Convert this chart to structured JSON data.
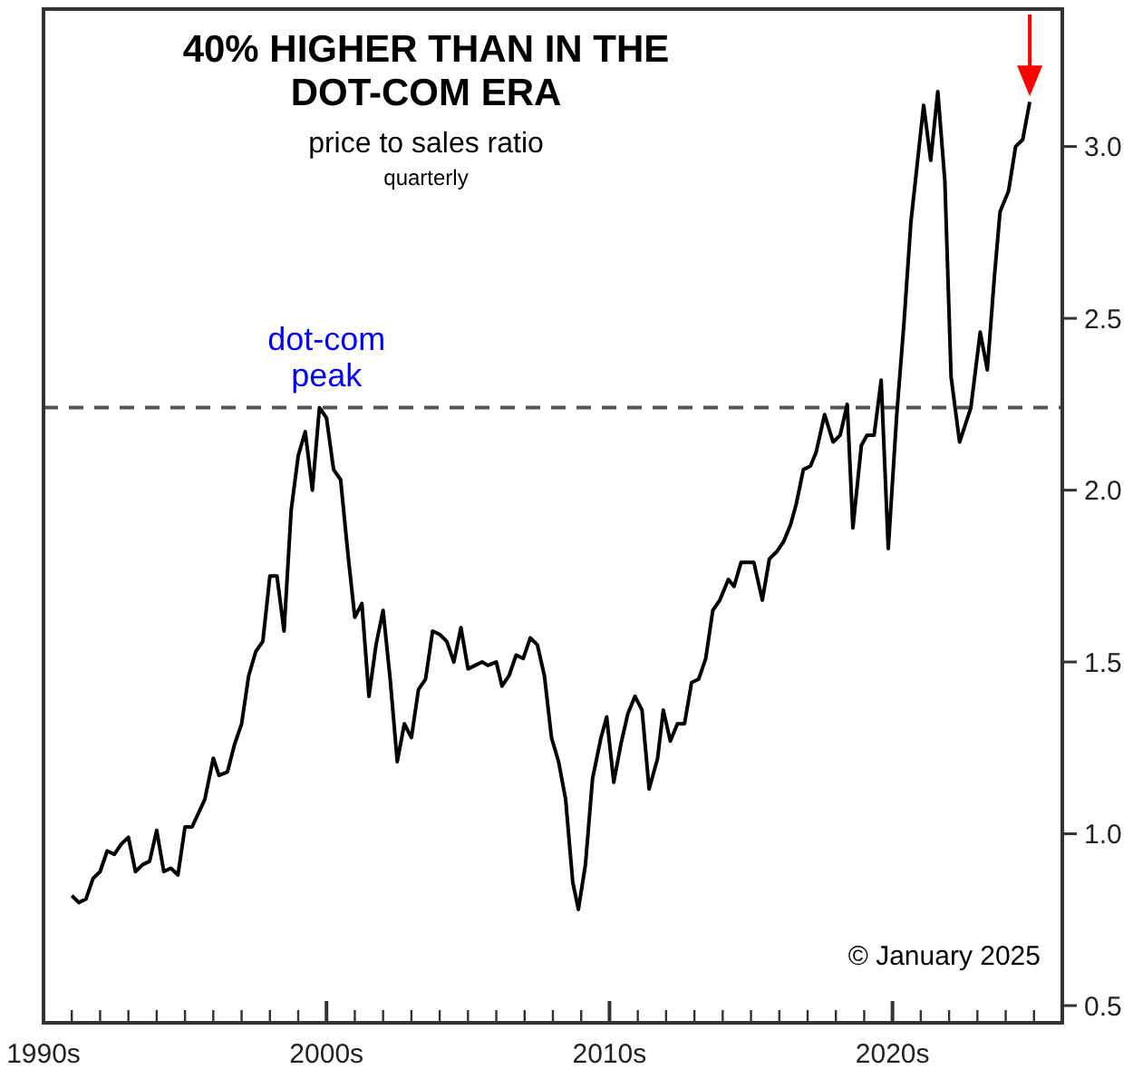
{
  "chart_data": {
    "type": "line",
    "title": "40% HIGHER THAN IN THE DOT-COM ERA",
    "subtitle": "price to sales ratio",
    "annotations": [
      "quarterly",
      "© January 2025"
    ],
    "series": [
      {
        "color": "#000000",
        "x": [
          1991,
          1991.25,
          1991.5,
          1991.75,
          1992,
          1992.25,
          1992.5,
          1992.75,
          1993,
          1993.25,
          1993.5,
          1993.75,
          1994,
          1994.25,
          1994.5,
          1994.75,
          1995,
          1995.25,
          1995.7,
          1996,
          1996.2,
          1996.5,
          1996.75,
          1997,
          1997.25,
          1997.5,
          1997.75,
          1998,
          1998.25,
          1998.5,
          1998.75,
          1999,
          1999.25,
          1999.5,
          1999.75,
          2000,
          2000.25,
          2000.5,
          2000.75,
          2001,
          2001.25,
          2001.5,
          2001.75,
          2002,
          2002.25,
          2002.5,
          2002.75,
          2003,
          2003.25,
          2003.5,
          2003.75,
          2004,
          2004.25,
          2004.5,
          2004.75,
          2005,
          2005.25,
          2005.5,
          2005.7,
          2006,
          2006.2,
          2006.45,
          2006.7,
          2006.95,
          2007.2,
          2007.45,
          2007.7,
          2007.95,
          2008.2,
          2008.45,
          2008.7,
          2008.9,
          2009.15,
          2009.4,
          2009.7,
          2009.9,
          2010.15,
          2010.4,
          2010.65,
          2010.9,
          2011.15,
          2011.4,
          2011.7,
          2011.9,
          2012.15,
          2012.4,
          2012.65,
          2012.9,
          2013.15,
          2013.4,
          2013.65,
          2013.9,
          2014.2,
          2014.4,
          2014.65,
          2015.1,
          2015.4,
          2015.65,
          2015.9,
          2016.15,
          2016.4,
          2016.6,
          2016.85,
          2017.1,
          2017.3,
          2017.6,
          2017.9,
          2018.15,
          2018.4,
          2018.6,
          2018.9,
          2019.1,
          2019.35,
          2019.6,
          2019.85,
          2020.15,
          2020.4,
          2020.65,
          2021.1,
          2021.35,
          2021.6,
          2021.85,
          2022.07,
          2022.37,
          2022.77,
          2023.1,
          2023.35,
          2023.6,
          2023.8,
          2024.1,
          2024.35,
          2024.6,
          2024.85
        ],
        "values": [
          0.82,
          0.8,
          0.81,
          0.87,
          0.89,
          0.95,
          0.94,
          0.97,
          0.99,
          0.89,
          0.91,
          0.92,
          1.01,
          0.89,
          0.9,
          0.88,
          1.02,
          1.02,
          1.1,
          1.22,
          1.17,
          1.18,
          1.26,
          1.32,
          1.46,
          1.53,
          1.56,
          1.75,
          1.75,
          1.59,
          1.94,
          2.1,
          2.17,
          2.0,
          2.24,
          2.21,
          2.06,
          2.03,
          1.82,
          1.63,
          1.67,
          1.4,
          1.55,
          1.65,
          1.45,
          1.21,
          1.32,
          1.28,
          1.42,
          1.45,
          1.59,
          1.58,
          1.56,
          1.5,
          1.6,
          1.48,
          1.49,
          1.5,
          1.49,
          1.5,
          1.43,
          1.46,
          1.52,
          1.51,
          1.57,
          1.55,
          1.46,
          1.28,
          1.21,
          1.1,
          0.86,
          0.78,
          0.91,
          1.16,
          1.28,
          1.34,
          1.15,
          1.26,
          1.35,
          1.4,
          1.36,
          1.13,
          1.22,
          1.36,
          1.27,
          1.32,
          1.32,
          1.44,
          1.45,
          1.51,
          1.65,
          1.68,
          1.74,
          1.72,
          1.79,
          1.79,
          1.68,
          1.8,
          1.82,
          1.85,
          1.9,
          1.96,
          2.06,
          2.07,
          2.11,
          2.22,
          2.14,
          2.16,
          2.25,
          1.89,
          2.13,
          2.16,
          2.16,
          2.32,
          1.83,
          2.22,
          2.48,
          2.78,
          3.12,
          2.96,
          3.16,
          2.9,
          2.33,
          2.14,
          2.24,
          2.46,
          2.35,
          2.62,
          2.81,
          2.87,
          3.0,
          3.02,
          3.13
        ]
      }
    ],
    "xlim": [
      1990,
      2026
    ],
    "xticks": [
      {
        "value": 1990,
        "label": "1990s"
      },
      {
        "value": 1991,
        "label": null
      },
      {
        "value": 1992,
        "label": null
      },
      {
        "value": 1993,
        "label": null
      },
      {
        "value": 1994,
        "label": null
      },
      {
        "value": 1995,
        "label": null
      },
      {
        "value": 1996,
        "label": null
      },
      {
        "value": 1997,
        "label": null
      },
      {
        "value": 1998,
        "label": null
      },
      {
        "value": 1999,
        "label": null
      },
      {
        "value": 2000,
        "label": "2000s"
      },
      {
        "value": 2001,
        "label": null
      },
      {
        "value": 2002,
        "label": null
      },
      {
        "value": 2003,
        "label": null
      },
      {
        "value": 2004,
        "label": null
      },
      {
        "value": 2005,
        "label": null
      },
      {
        "value": 2006,
        "label": null
      },
      {
        "value": 2007,
        "label": null
      },
      {
        "value": 2008,
        "label": null
      },
      {
        "value": 2009,
        "label": null
      },
      {
        "value": 2010,
        "label": "2010s"
      },
      {
        "value": 2011,
        "label": null
      },
      {
        "value": 2012,
        "label": null
      },
      {
        "value": 2013,
        "label": null
      },
      {
        "value": 2014,
        "label": null
      },
      {
        "value": 2015,
        "label": null
      },
      {
        "value": 2016,
        "label": null
      },
      {
        "value": 2017,
        "label": null
      },
      {
        "value": 2018,
        "label": null
      },
      {
        "value": 2019,
        "label": null
      },
      {
        "value": 2020,
        "label": "2020s"
      },
      {
        "value": 2021,
        "label": null
      },
      {
        "value": 2022,
        "label": null
      },
      {
        "value": 2023,
        "label": null
      },
      {
        "value": 2024,
        "label": null
      },
      {
        "value": 2025,
        "label": null
      }
    ],
    "ylim": [
      0.45,
      3.4
    ],
    "yticks": [
      0.5,
      {
        "value": 1,
        "label": "1.0"
      },
      1.5,
      {
        "value": 2,
        "label": "2.0"
      },
      2.5,
      {
        "value": 3,
        "label": "3.0"
      }
    ],
    "ref_lines": [
      {
        "axis": "y",
        "value": 2.24,
        "label": "dot-com peak",
        "color": "#555555",
        "line_style": "dashed"
      }
    ],
    "grid": false,
    "marker": "none",
    "line_style": "solid"
  }
}
